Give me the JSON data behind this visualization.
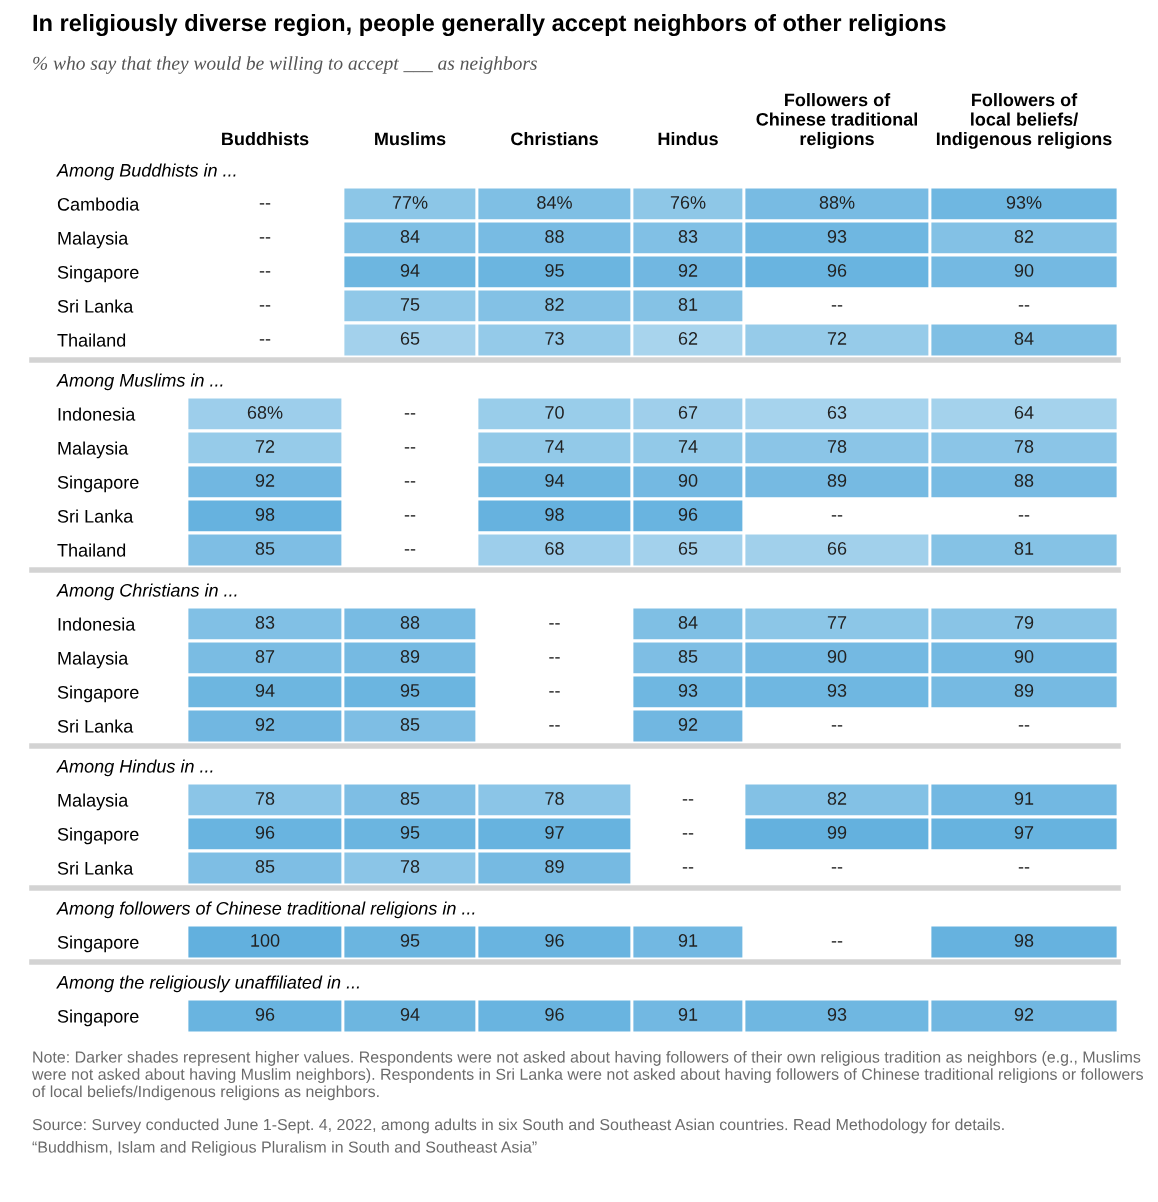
{
  "chart_data": {
    "type": "heatmap",
    "title": "In religiously diverse region, people generally accept neighbors of other religions",
    "subtitle": "% who say that they would be willing to accept ___ as neighbors",
    "categories": [
      "Buddhists",
      "Muslims",
      "Christians",
      "Hindus",
      "Followers of\nChinese traditional\nreligions",
      "Followers of\nlocal beliefs/\nIndigenous religions"
    ],
    "y_categories": [
      "Among Buddhists in ...",
      "Cambodia",
      "Malaysia",
      "Singapore",
      "Sri Lanka",
      "Thailand",
      "Among Muslims in ...",
      "Indonesia",
      "Malaysia",
      "Singapore",
      "Sri Lanka",
      "Thailand",
      "Among Christians in ...",
      "Indonesia",
      "Malaysia",
      "Singapore",
      "Sri Lanka",
      "Among Hindus in ...",
      "Malaysia",
      "Singapore",
      "Sri Lanka",
      "Among followers of Chinese traditional religions in ...",
      "Singapore",
      "Among the religiously unaffiliated in ...",
      "Singapore"
    ],
    "colors": [
      "#a8d4ed",
      "#62b0de"
    ],
    "cells": [
      [
        null,
        null,
        null,
        null,
        null,
        null
      ],
      [
        null,
        77,
        84,
        76,
        88,
        93
      ],
      [
        null,
        84,
        88,
        83,
        93,
        82
      ],
      [
        null,
        94,
        95,
        92,
        96,
        90
      ],
      [
        null,
        75,
        82,
        81,
        null,
        null
      ],
      [
        null,
        65,
        73,
        62,
        72,
        84
      ],
      [
        null,
        null,
        null,
        null,
        null,
        null
      ],
      [
        68,
        null,
        70,
        67,
        63,
        64
      ],
      [
        72,
        null,
        74,
        74,
        78,
        78
      ],
      [
        92,
        null,
        94,
        90,
        89,
        88
      ],
      [
        98,
        null,
        98,
        96,
        null,
        null
      ],
      [
        85,
        null,
        68,
        65,
        66,
        81
      ],
      [
        null,
        null,
        null,
        null,
        null,
        null
      ],
      [
        83,
        88,
        null,
        84,
        77,
        79
      ],
      [
        87,
        89,
        null,
        85,
        90,
        90
      ],
      [
        94,
        95,
        null,
        93,
        93,
        89
      ],
      [
        92,
        85,
        null,
        92,
        null,
        null
      ],
      [
        null,
        null,
        null,
        null,
        null,
        null
      ],
      [
        78,
        85,
        78,
        null,
        82,
        91
      ],
      [
        96,
        95,
        97,
        null,
        99,
        97
      ],
      [
        85,
        78,
        89,
        null,
        null,
        null
      ],
      [
        null,
        null,
        null,
        null,
        null,
        null
      ],
      [
        100,
        95,
        96,
        91,
        null,
        98
      ],
      [
        null,
        null,
        null,
        null,
        null,
        null
      ],
      [
        96,
        94,
        96,
        91,
        93,
        92
      ]
    ],
    "cell_labels": [
      [
        null,
        null,
        null,
        null,
        null,
        null
      ],
      [
        "--",
        "77%",
        "84%",
        "76%",
        "88%",
        "93%"
      ],
      [
        "--",
        "84",
        "88",
        "83",
        "93",
        "82"
      ],
      [
        "--",
        "94",
        "95",
        "92",
        "96",
        "90"
      ],
      [
        "--",
        "75",
        "82",
        "81",
        "--",
        "--"
      ],
      [
        "--",
        "65",
        "73",
        "62",
        "72",
        "84"
      ],
      [
        null,
        null,
        null,
        null,
        null,
        null
      ],
      [
        "68%",
        "--",
        "70",
        "67",
        "63",
        "64"
      ],
      [
        "72",
        "--",
        "74",
        "74",
        "78",
        "78"
      ],
      [
        "92",
        "--",
        "94",
        "90",
        "89",
        "88"
      ],
      [
        "98",
        "--",
        "98",
        "96",
        "--",
        "--"
      ],
      [
        "85",
        "--",
        "68",
        "65",
        "66",
        "81"
      ],
      [
        null,
        null,
        null,
        null,
        null,
        null
      ],
      [
        "83",
        "88",
        "--",
        "84",
        "77",
        "79"
      ],
      [
        "87",
        "89",
        "--",
        "85",
        "90",
        "90"
      ],
      [
        "94",
        "95",
        "--",
        "93",
        "93",
        "89"
      ],
      [
        "92",
        "85",
        "--",
        "92",
        "--",
        "--"
      ],
      [
        null,
        null,
        null,
        null,
        null,
        null
      ],
      [
        "78",
        "85",
        "78",
        "--",
        "82",
        "91"
      ],
      [
        "96",
        "95",
        "97",
        "--",
        "99",
        "97"
      ],
      [
        "85",
        "78",
        "89",
        "--",
        "--",
        "--"
      ],
      [
        null,
        null,
        null,
        null,
        null,
        null
      ],
      [
        "100",
        "95",
        "96",
        "91",
        "--",
        "98"
      ],
      [
        null,
        null,
        null,
        null,
        null,
        null
      ],
      [
        "96",
        "94",
        "96",
        "91",
        "93",
        "92"
      ]
    ],
    "annotations": [
      "Note: Darker shades represent higher values. Respondents were not asked about having followers of their own religious tradition as neighbors (e.g., Muslims were not asked about having Muslim neighbors). Respondents in Sri Lanka were not asked about having followers of Chinese traditional religions or followers of local beliefs/Indigenous religions as neighbors.",
      "Source: Survey conducted June 1-Sept. 4, 2022, among adults in six South and Southeast Asian countries. Read Methodology for details.",
      "“Buddhism, Islam and Religious Pluralism in South and Southeast Asia”"
    ]
  }
}
